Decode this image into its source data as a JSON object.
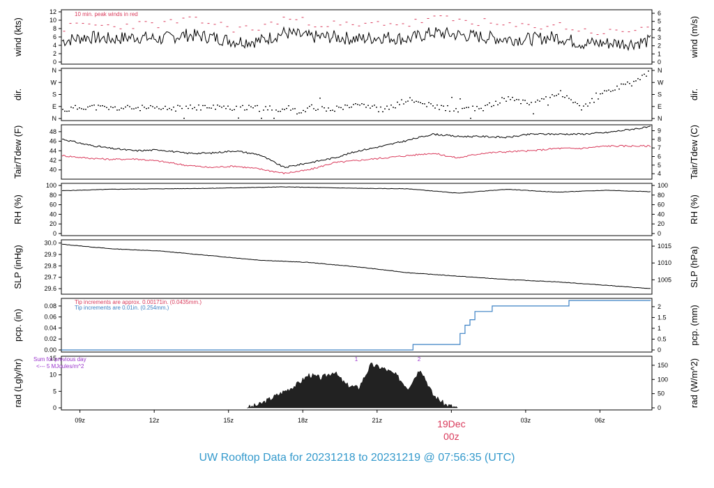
{
  "title": "UW Rooftop Data for 20231218  to  20231219 @ 07:56:35  (UTC)",
  "colors": {
    "axis": "#000000",
    "peak": "#d9395a",
    "dewpoint": "#d9395a",
    "precip2": "#3a80c4",
    "note_purple": "#9933cc",
    "date_label": "#d9395a",
    "title": "#3399cc"
  },
  "x_axis": {
    "ticks": [
      "09z",
      "12z",
      "15z",
      "18z",
      "21z",
      "00z",
      "03z",
      "06z"
    ],
    "date_label": "19Dec",
    "date_sublabel": "00z"
  },
  "chart_data": [
    {
      "type": "line",
      "name": "wind",
      "ylabel": "wind (kts)",
      "ylabel_right": "wind (m/s)",
      "ylim": [
        0,
        12
      ],
      "yticks": [
        0,
        2,
        4,
        6,
        8,
        10,
        12
      ],
      "ylim_right": [
        0,
        6.17
      ],
      "yticks_right": [
        0,
        1,
        2,
        3,
        4,
        5,
        6
      ],
      "annotation": "10 min. peak winds in red",
      "x_hours": [
        0,
        1,
        2,
        3,
        4,
        5,
        6,
        7,
        8,
        9,
        10,
        11,
        12,
        13,
        14,
        15,
        16,
        17,
        18,
        19,
        20,
        21,
        22,
        23,
        23.8
      ],
      "values": [
        5,
        6,
        5.5,
        6,
        5.5,
        6.5,
        6,
        5,
        5,
        7,
        6,
        6,
        5.5,
        6,
        5.5,
        7,
        6.5,
        6,
        5.5,
        5.5,
        6,
        4.5,
        4.5,
        4.5,
        5
      ],
      "peak_values": [
        8,
        9,
        8.5,
        9,
        9,
        10,
        9.5,
        8,
        8,
        10.5,
        9.5,
        9,
        8.5,
        9.5,
        9,
        10.5,
        10,
        9.5,
        8.5,
        8.5,
        9,
        7.5,
        7,
        7.5,
        9
      ]
    },
    {
      "type": "scatter",
      "name": "dir",
      "ylabel": "dir.",
      "ylabel_right": "dir.",
      "ytick_labels": [
        "N",
        "E",
        "S",
        "W",
        "N"
      ],
      "x_hours": [
        0,
        1,
        2,
        3,
        4,
        5,
        6,
        7,
        8,
        9,
        10,
        11,
        12,
        13,
        14,
        15,
        16,
        17,
        18,
        19,
        20,
        21,
        22,
        23,
        23.8
      ],
      "values": [
        60,
        90,
        75,
        80,
        70,
        80,
        85,
        80,
        75,
        70,
        60,
        75,
        120,
        60,
        140,
        90,
        70,
        75,
        150,
        120,
        190,
        80,
        200,
        260,
        350
      ]
    },
    {
      "type": "line",
      "name": "temp",
      "ylabel": "Tair/Tdew (F)",
      "ylabel_right": "Tair/Tdew (C)",
      "ylim": [
        38.5,
        49
      ],
      "yticks": [
        40,
        42,
        44,
        46,
        48
      ],
      "yticks_right": [
        4,
        5,
        6,
        7,
        8,
        9
      ],
      "x_hours": [
        0,
        1,
        2,
        3,
        4,
        5,
        6,
        7,
        8,
        9,
        10,
        11,
        12,
        13,
        14,
        15,
        16,
        17,
        18,
        19,
        20,
        21,
        22,
        23,
        23.8
      ],
      "series": [
        {
          "values": [
            46.5,
            45.3,
            44.5,
            44.0,
            44.2,
            43.5,
            43.5,
            44.0,
            43.2,
            40.5,
            41.5,
            42.5,
            44.0,
            45.0,
            46.2,
            47.5,
            47.0,
            47.0,
            46.8,
            47.5,
            47.5,
            47.5,
            47.8,
            48.5,
            49.0
          ]
        },
        {
          "values": [
            43.0,
            42.5,
            42.2,
            42.3,
            41.8,
            41.0,
            40.5,
            40.8,
            40.2,
            39.3,
            40.0,
            41.5,
            42.0,
            42.5,
            43.0,
            43.5,
            42.5,
            43.5,
            43.8,
            44.0,
            44.5,
            44.5,
            45.0,
            45.0,
            45.0
          ]
        }
      ]
    },
    {
      "type": "line",
      "name": "rh",
      "ylabel": "RH (%)",
      "ylabel_right": "RH (%)",
      "ylim": [
        0,
        100
      ],
      "yticks": [
        0,
        20,
        40,
        60,
        80,
        100
      ],
      "x_hours": [
        0,
        2,
        4,
        6,
        8,
        9,
        10,
        12,
        14,
        16,
        18,
        20,
        22,
        23.8
      ],
      "values": [
        89,
        92,
        93,
        94,
        96,
        97,
        96,
        94,
        93,
        84,
        92,
        86,
        90,
        87
      ]
    },
    {
      "type": "line",
      "name": "slp",
      "ylabel": "SLP (inHg)",
      "ylabel_right": "SLP (hPa)",
      "ylim": [
        29.57,
        30.01
      ],
      "yticks": [
        "29.6",
        "29.7",
        "29.8",
        "29.9",
        "30.0"
      ],
      "yticks_right": [
        1005,
        1010,
        1015
      ],
      "x_hours": [
        0,
        2,
        4,
        6,
        8,
        10,
        12,
        14,
        16,
        18,
        20,
        22,
        23.8
      ],
      "values": [
        29.99,
        29.95,
        29.93,
        29.89,
        29.85,
        29.83,
        29.79,
        29.74,
        29.71,
        29.68,
        29.66,
        29.63,
        29.6
      ]
    },
    {
      "type": "line",
      "name": "pcp",
      "ylabel": "pcp. (in)",
      "ylabel_right": "pcp. (mm)",
      "ylim": [
        0,
        0.09
      ],
      "yticks": [
        "0.00",
        "0.02",
        "0.04",
        "0.06",
        "0.08"
      ],
      "yticks_right": [
        "0",
        "0.5",
        "1",
        "1.5",
        "2"
      ],
      "note1": "Tip increments are approx. 0.00171in. (0.0435mm.)",
      "note2": "Tip increments are 0.01in. (0.254mm.)",
      "x_hours": [
        0,
        14.2,
        14.2,
        16.1,
        16.1,
        16.3,
        16.3,
        16.5,
        16.5,
        16.7,
        16.7,
        17.4,
        17.4,
        20.5,
        20.5,
        23.8
      ],
      "values": [
        0,
        0,
        0.01,
        0.01,
        0.03,
        0.03,
        0.045,
        0.045,
        0.055,
        0.055,
        0.07,
        0.07,
        0.08,
        0.08,
        0.09,
        0.09
      ]
    },
    {
      "type": "area",
      "name": "rad",
      "ylabel": "rad (Lgly/hr)",
      "ylabel_right": "rad (W/m^2)",
      "ylim": [
        0,
        15
      ],
      "yticks": [
        0,
        5,
        10,
        15
      ],
      "yticks_right": [
        0,
        50,
        100,
        150
      ],
      "note1": "Sum for previous day",
      "note2": "<--- 5 MJoules/m^2",
      "markers": [
        "1",
        "2"
      ],
      "x_hours": [
        7.5,
        8,
        8.5,
        9,
        9.5,
        10,
        10.5,
        11,
        11.5,
        12,
        12.5,
        13,
        13.5,
        14,
        14.5,
        15,
        15.5,
        16
      ],
      "values": [
        0,
        1,
        3,
        5,
        7,
        10,
        9,
        11,
        7,
        6,
        13,
        12,
        10,
        6,
        12,
        4,
        1,
        0
      ]
    }
  ]
}
